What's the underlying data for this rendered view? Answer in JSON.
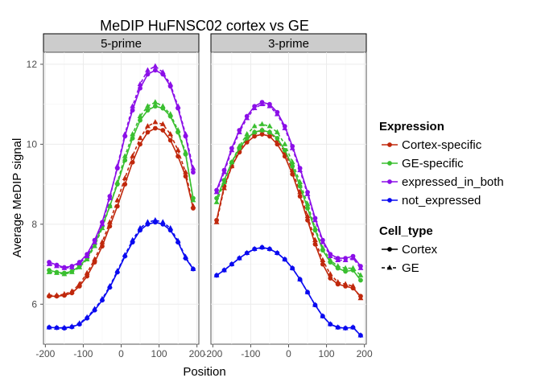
{
  "chart_data": {
    "type": "line",
    "title": "MeDIP HuFNSC02 cortex vs GE",
    "xlabel": "Position",
    "ylabel": "Average MeDIP signal",
    "ylim": [
      5.0,
      12.3
    ],
    "y_ticks": [
      6,
      8,
      10,
      12
    ],
    "grid": true,
    "legend_placement": "right",
    "color_legend": {
      "title": "Expression",
      "entries": [
        {
          "label": "Cortex-specific",
          "color": "#C0280C"
        },
        {
          "label": "GE-specific",
          "color": "#3ABF30"
        },
        {
          "label": "expressed_in_both",
          "color": "#8B0FE8"
        },
        {
          "label": "not_expressed",
          "color": "#0A0AF0"
        }
      ]
    },
    "shape_legend": {
      "title": "Cell_type",
      "entries": [
        {
          "label": "Cortex",
          "shape": "circle",
          "dash": "solid"
        },
        {
          "label": "GE",
          "shape": "triangle",
          "dash": "dashed"
        }
      ]
    },
    "panels": [
      {
        "label": "5-prime",
        "xlim": [
          -205,
          205
        ],
        "x_ticks": [
          -200,
          -100,
          0,
          100,
          200
        ],
        "x": [
          -190,
          -170,
          -150,
          -130,
          -110,
          -90,
          -70,
          -50,
          -30,
          -10,
          10,
          30,
          50,
          70,
          90,
          110,
          130,
          150,
          170,
          190
        ],
        "series": [
          {
            "expression": "Cortex-specific",
            "cell_type": "Cortex",
            "values": [
              6.2,
              6.2,
              6.22,
              6.28,
              6.45,
              6.7,
              7.05,
              7.45,
              7.95,
              8.45,
              9.0,
              9.55,
              10.0,
              10.3,
              10.4,
              10.35,
              10.1,
              9.7,
              9.2,
              8.4
            ]
          },
          {
            "expression": "Cortex-specific",
            "cell_type": "GE",
            "values": [
              6.22,
              6.22,
              6.25,
              6.32,
              6.5,
              6.78,
              7.12,
              7.55,
              8.05,
              8.6,
              9.15,
              9.7,
              10.15,
              10.45,
              10.55,
              10.5,
              10.25,
              9.85,
              9.3,
              8.45
            ]
          },
          {
            "expression": "GE-specific",
            "cell_type": "Cortex",
            "values": [
              6.85,
              6.8,
              6.78,
              6.82,
              6.95,
              7.15,
              7.5,
              7.95,
              8.45,
              9.0,
              9.6,
              10.15,
              10.6,
              10.85,
              10.95,
              10.9,
              10.7,
              10.3,
              9.75,
              8.65
            ]
          },
          {
            "expression": "GE-specific",
            "cell_type": "GE",
            "values": [
              6.8,
              6.78,
              6.75,
              6.8,
              6.92,
              7.12,
              7.45,
              7.9,
              8.45,
              9.05,
              9.7,
              10.25,
              10.7,
              10.95,
              11.05,
              10.95,
              10.75,
              10.35,
              9.8,
              8.6
            ]
          },
          {
            "expression": "expressed_in_both",
            "cell_type": "Cortex",
            "values": [
              7.05,
              6.98,
              6.92,
              6.95,
              7.05,
              7.25,
              7.6,
              8.05,
              8.7,
              9.4,
              10.2,
              10.85,
              11.4,
              11.75,
              11.85,
              11.75,
              11.45,
              10.9,
              10.2,
              9.3
            ]
          },
          {
            "expression": "expressed_in_both",
            "cell_type": "GE",
            "values": [
              7.0,
              6.95,
              6.9,
              6.92,
              7.02,
              7.2,
              7.55,
              8.0,
              8.65,
              9.45,
              10.25,
              10.95,
              11.5,
              11.85,
              11.95,
              11.8,
              11.5,
              10.95,
              10.25,
              9.4
            ]
          },
          {
            "expression": "not_expressed",
            "cell_type": "Cortex",
            "values": [
              5.42,
              5.41,
              5.4,
              5.43,
              5.5,
              5.65,
              5.85,
              6.1,
              6.42,
              6.8,
              7.2,
              7.55,
              7.85,
              8.0,
              8.05,
              8.0,
              7.85,
              7.55,
              7.15,
              6.88
            ]
          },
          {
            "expression": "not_expressed",
            "cell_type": "GE",
            "values": [
              5.42,
              5.41,
              5.41,
              5.44,
              5.52,
              5.67,
              5.88,
              6.13,
              6.45,
              6.83,
              7.23,
              7.6,
              7.9,
              8.05,
              8.1,
              8.05,
              7.9,
              7.58,
              7.18,
              6.88
            ]
          }
        ]
      },
      {
        "label": "3-prime",
        "xlim": [
          -205,
          205
        ],
        "x_ticks": [
          -200,
          -100,
          0,
          100,
          200
        ],
        "x": [
          -190,
          -170,
          -150,
          -130,
          -110,
          -90,
          -70,
          -50,
          -30,
          -10,
          10,
          30,
          50,
          70,
          90,
          110,
          130,
          150,
          170,
          190
        ],
        "series": [
          {
            "expression": "Cortex-specific",
            "cell_type": "Cortex",
            "values": [
              8.1,
              8.95,
              9.45,
              9.8,
              10.05,
              10.2,
              10.25,
              10.2,
              10.0,
              9.7,
              9.25,
              8.7,
              8.1,
              7.5,
              7.0,
              6.65,
              6.5,
              6.45,
              6.4,
              6.2
            ]
          },
          {
            "expression": "Cortex-specific",
            "cell_type": "GE",
            "values": [
              8.05,
              8.9,
              9.45,
              9.85,
              10.12,
              10.3,
              10.35,
              10.3,
              10.1,
              9.8,
              9.35,
              8.8,
              8.2,
              7.6,
              7.1,
              6.75,
              6.55,
              6.5,
              6.45,
              6.15
            ]
          },
          {
            "expression": "GE-specific",
            "cell_type": "Cortex",
            "values": [
              8.65,
              9.1,
              9.55,
              9.9,
              10.15,
              10.3,
              10.35,
              10.3,
              10.15,
              9.85,
              9.45,
              8.95,
              8.4,
              7.85,
              7.35,
              7.05,
              6.9,
              6.82,
              6.85,
              6.6
            ]
          },
          {
            "expression": "GE-specific",
            "cell_type": "GE",
            "values": [
              8.55,
              9.05,
              9.55,
              9.95,
              10.25,
              10.45,
              10.5,
              10.45,
              10.3,
              10.0,
              9.55,
              9.05,
              8.5,
              7.9,
              7.4,
              7.1,
              6.95,
              6.9,
              6.9,
              6.72
            ]
          },
          {
            "expression": "expressed_in_both",
            "cell_type": "Cortex",
            "values": [
              8.85,
              9.35,
              9.9,
              10.35,
              10.7,
              10.95,
              11.05,
              11.0,
              10.8,
              10.45,
              9.95,
              9.4,
              8.8,
              8.15,
              7.6,
              7.25,
              7.15,
              7.15,
              7.2,
              6.95
            ]
          },
          {
            "expression": "expressed_in_both",
            "cell_type": "GE",
            "values": [
              8.8,
              9.3,
              9.85,
              10.3,
              10.65,
              10.9,
              11.0,
              10.95,
              10.75,
              10.4,
              9.9,
              9.35,
              8.75,
              8.1,
              7.55,
              7.2,
              7.1,
              7.1,
              7.15,
              6.9
            ]
          },
          {
            "expression": "not_expressed",
            "cell_type": "Cortex",
            "values": [
              6.72,
              6.85,
              7.0,
              7.15,
              7.28,
              7.38,
              7.42,
              7.38,
              7.28,
              7.12,
              6.9,
              6.62,
              6.3,
              5.98,
              5.7,
              5.5,
              5.42,
              5.4,
              5.42,
              5.22
            ]
          },
          {
            "expression": "not_expressed",
            "cell_type": "GE",
            "values": [
              6.72,
              6.85,
              7.0,
              7.15,
              7.28,
              7.38,
              7.42,
              7.38,
              7.28,
              7.12,
              6.9,
              6.62,
              6.3,
              5.98,
              5.7,
              5.5,
              5.42,
              5.4,
              5.42,
              5.22
            ]
          }
        ]
      }
    ]
  }
}
